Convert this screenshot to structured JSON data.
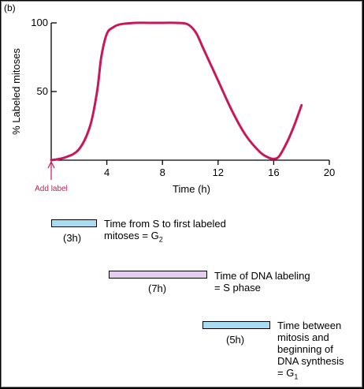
{
  "panel_label": "(b)",
  "chart_data": {
    "type": "line",
    "xlabel": "Time (h)",
    "ylabel": "% Labeled mitoses",
    "xlim": [
      0,
      20
    ],
    "ylim": [
      0,
      100
    ],
    "x_ticks": [
      4,
      8,
      12,
      16,
      20
    ],
    "y_ticks": [
      50,
      100
    ],
    "series": [
      {
        "color": "#c8185a",
        "x": [
          0,
          1,
          2,
          2.8,
          3.3,
          3.6,
          4.0,
          4.5,
          5,
          6,
          7,
          8,
          9,
          9.8,
          10.4,
          11,
          12,
          13,
          14,
          15,
          15.6,
          16,
          16.4,
          17,
          17.5,
          18
        ],
        "y": [
          0,
          2,
          8,
          25,
          50,
          75,
          92,
          97,
          99,
          100,
          100,
          100,
          100,
          99,
          93,
          80,
          58,
          36,
          18,
          6,
          2,
          1,
          3,
          14,
          26,
          40
        ]
      }
    ],
    "annotation": {
      "label": "Add label",
      "x": 0,
      "color": "#c8185a"
    }
  },
  "legend_bars": [
    {
      "color": "#a8dcf0",
      "duration": "(3h)",
      "description_lines": [
        "Time from S to first labeled",
        "mitoses = G"
      ],
      "subscript": "2"
    },
    {
      "color": "#e4cef0",
      "duration": "(7h)",
      "description_lines": [
        "Time of DNA labeling",
        "= S phase"
      ],
      "subscript": ""
    },
    {
      "color": "#a8dcf0",
      "duration": "(5h)",
      "description_lines": [
        "Time between",
        "mitosis and",
        "beginning of",
        "DNA synthesis",
        "= G"
      ],
      "subscript": "1"
    }
  ]
}
